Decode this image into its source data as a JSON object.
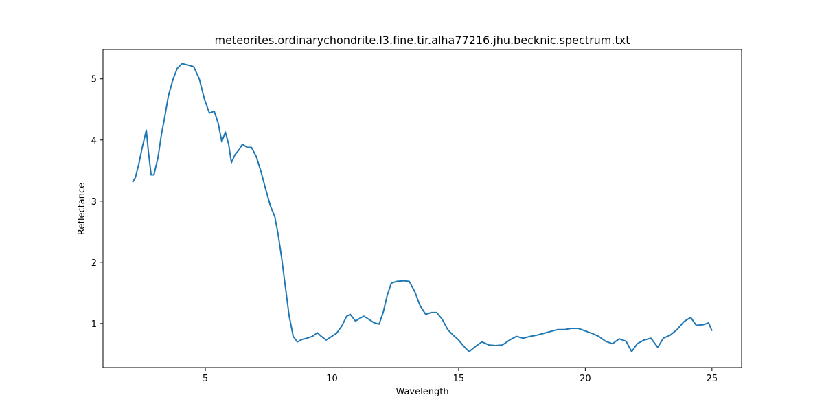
{
  "chart_data": {
    "type": "line",
    "title": "meteorites.ordinarychondrite.l3.fine.tir.alha77216.jhu.becknic.spectrum.txt",
    "x_label": "Wavelength",
    "y_label": "Reflectance",
    "x": [
      2.13,
      2.24,
      2.37,
      2.51,
      2.67,
      2.75,
      2.86,
      2.97,
      3.13,
      3.27,
      3.4,
      3.54,
      3.73,
      3.89,
      4.08,
      4.27,
      4.54,
      4.76,
      4.97,
      5.16,
      5.35,
      5.51,
      5.65,
      5.79,
      5.92,
      6.03,
      6.17,
      6.33,
      6.46,
      6.65,
      6.82,
      7.01,
      7.2,
      7.38,
      7.57,
      7.74,
      7.87,
      8.01,
      8.17,
      8.31,
      8.47,
      8.63,
      8.82,
      9.01,
      9.23,
      9.42,
      9.58,
      9.77,
      9.99,
      10.18,
      10.39,
      10.58,
      10.72,
      10.93,
      11.12,
      11.26,
      11.45,
      11.67,
      11.86,
      12.02,
      12.18,
      12.34,
      12.56,
      12.83,
      13.05,
      13.27,
      13.48,
      13.7,
      13.92,
      14.13,
      14.35,
      14.57,
      14.78,
      15.0,
      15.22,
      15.41,
      15.65,
      15.92,
      16.19,
      16.46,
      16.73,
      17.01,
      17.28,
      17.55,
      17.82,
      18.09,
      18.36,
      18.63,
      18.9,
      19.17,
      19.44,
      19.72,
      19.99,
      20.26,
      20.53,
      20.8,
      21.07,
      21.34,
      21.61,
      21.83,
      22.05,
      22.32,
      22.59,
      22.86,
      23.08,
      23.35,
      23.62,
      23.89,
      24.16,
      24.38,
      24.65,
      24.87,
      25.0
    ],
    "series": [
      {
        "name": "spectrum",
        "color": "#1f77b4",
        "values": [
          3.31,
          3.39,
          3.6,
          3.88,
          4.16,
          3.82,
          3.43,
          3.43,
          3.71,
          4.1,
          4.38,
          4.72,
          5.0,
          5.17,
          5.25,
          5.23,
          5.2,
          5.0,
          4.66,
          4.44,
          4.47,
          4.27,
          3.97,
          4.13,
          3.93,
          3.63,
          3.76,
          3.84,
          3.93,
          3.88,
          3.88,
          3.73,
          3.48,
          3.2,
          2.92,
          2.75,
          2.47,
          2.08,
          1.57,
          1.12,
          0.79,
          0.7,
          0.74,
          0.76,
          0.79,
          0.85,
          0.79,
          0.73,
          0.79,
          0.84,
          0.96,
          1.12,
          1.15,
          1.04,
          1.09,
          1.12,
          1.07,
          1.01,
          0.99,
          1.18,
          1.46,
          1.66,
          1.69,
          1.7,
          1.69,
          1.52,
          1.29,
          1.15,
          1.18,
          1.18,
          1.07,
          0.9,
          0.81,
          0.73,
          0.62,
          0.54,
          0.62,
          0.7,
          0.65,
          0.64,
          0.65,
          0.73,
          0.79,
          0.76,
          0.79,
          0.81,
          0.84,
          0.87,
          0.9,
          0.9,
          0.92,
          0.92,
          0.88,
          0.84,
          0.79,
          0.71,
          0.67,
          0.75,
          0.71,
          0.54,
          0.67,
          0.73,
          0.76,
          0.61,
          0.76,
          0.81,
          0.9,
          1.03,
          1.1,
          0.97,
          0.98,
          1.01,
          0.88
        ]
      }
    ],
    "xlim": [
      0.96,
      26.17
    ],
    "ylim": [
      0.28,
      5.48
    ],
    "xticks": [
      5,
      10,
      15,
      20,
      25
    ],
    "yticks": [
      1,
      2,
      3,
      4,
      5
    ]
  }
}
